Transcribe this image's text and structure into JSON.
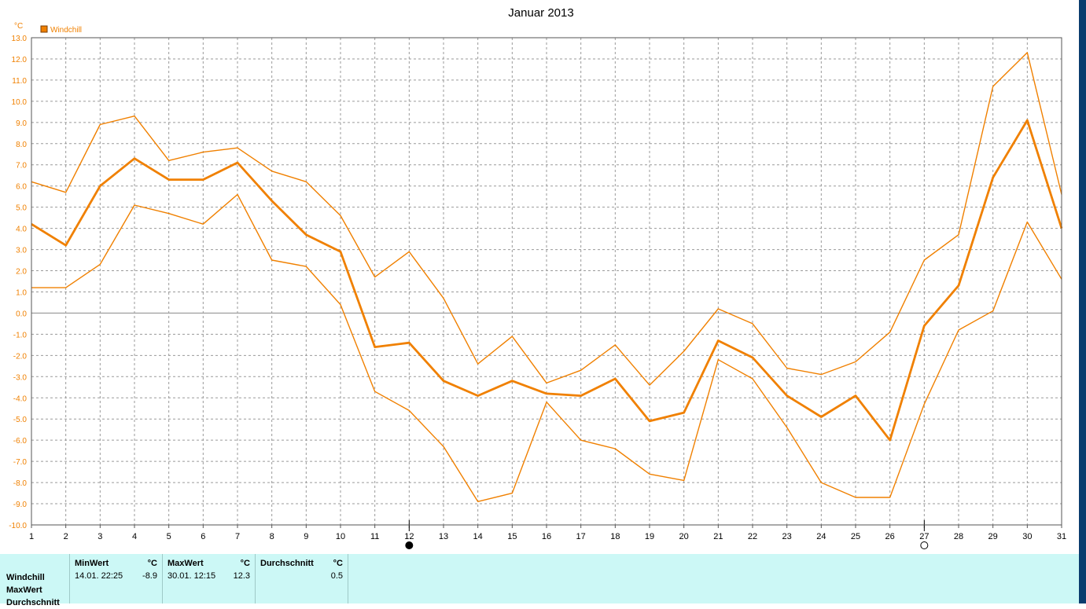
{
  "chart_data": {
    "type": "line",
    "title": "Januar 2013",
    "ylabel": "°C",
    "ylim": [
      -10,
      13
    ],
    "yticks": [
      "13.0",
      "12.0",
      "11.0",
      "10.0",
      "9.0",
      "8.0",
      "7.0",
      "6.0",
      "5.0",
      "4.0",
      "3.0",
      "2.0",
      "1.0",
      "0.0",
      "-1.0",
      "-2.0",
      "-3.0",
      "-4.0",
      "-5.0",
      "-6.0",
      "-7.0",
      "-8.0",
      "-9.0",
      "-10.0"
    ],
    "x": [
      1,
      2,
      3,
      4,
      5,
      6,
      7,
      8,
      9,
      10,
      11,
      12,
      13,
      14,
      15,
      16,
      17,
      18,
      19,
      20,
      21,
      22,
      23,
      24,
      25,
      26,
      27,
      28,
      29,
      30,
      31
    ],
    "grid": true,
    "legend": "Windchill",
    "color": "#f08000",
    "series": [
      {
        "values": [
          6.2,
          5.7,
          8.9,
          9.3,
          7.2,
          7.6,
          7.8,
          6.7,
          6.2,
          4.6,
          1.7,
          2.9,
          0.7,
          -2.4,
          -1.1,
          -3.3,
          -2.7,
          -1.5,
          -3.4,
          -1.8,
          0.2,
          -0.5,
          -2.6,
          -2.9,
          -2.3,
          -0.9,
          2.5,
          3.7,
          10.7,
          12.3,
          5.6
        ]
      },
      {
        "values": [
          4.2,
          3.2,
          6.0,
          7.3,
          6.3,
          6.3,
          7.1,
          5.3,
          3.7,
          2.9,
          -1.6,
          -1.4,
          -3.2,
          -3.9,
          -3.2,
          -3.8,
          -3.9,
          -3.1,
          -5.1,
          -4.7,
          -1.3,
          -2.1,
          -3.9,
          -4.9,
          -3.9,
          -6.0,
          -0.6,
          1.3,
          6.4,
          9.1,
          4.0
        ]
      },
      {
        "values": [
          1.2,
          1.2,
          2.3,
          5.1,
          4.7,
          4.2,
          5.6,
          2.5,
          2.2,
          0.4,
          -3.7,
          -4.6,
          -6.3,
          -8.9,
          -8.5,
          -4.2,
          -6.0,
          -6.4,
          -7.6,
          -7.9,
          -2.2,
          -3.1,
          -5.4,
          -8.0,
          -8.7,
          -8.7,
          -4.3,
          -0.8,
          0.1,
          4.3,
          1.6
        ]
      }
    ],
    "moon_markers": [
      {
        "day": 12,
        "phase": "full-moon"
      },
      {
        "day": 27,
        "phase": "new-moon"
      }
    ]
  },
  "stats": {
    "row_labels": [
      "Windchill",
      "MaxWert",
      "Durchschnitt"
    ],
    "min": {
      "header": "MinWert",
      "unit": "°C",
      "time": "14.01.  22:25",
      "value": "-8.9"
    },
    "max": {
      "header": "MaxWert",
      "unit": "°C",
      "time": "30.01.  12:15",
      "value": "12.3"
    },
    "avg": {
      "header": "Durchschnitt",
      "unit": "°C",
      "time": "",
      "value": "0.5"
    }
  }
}
